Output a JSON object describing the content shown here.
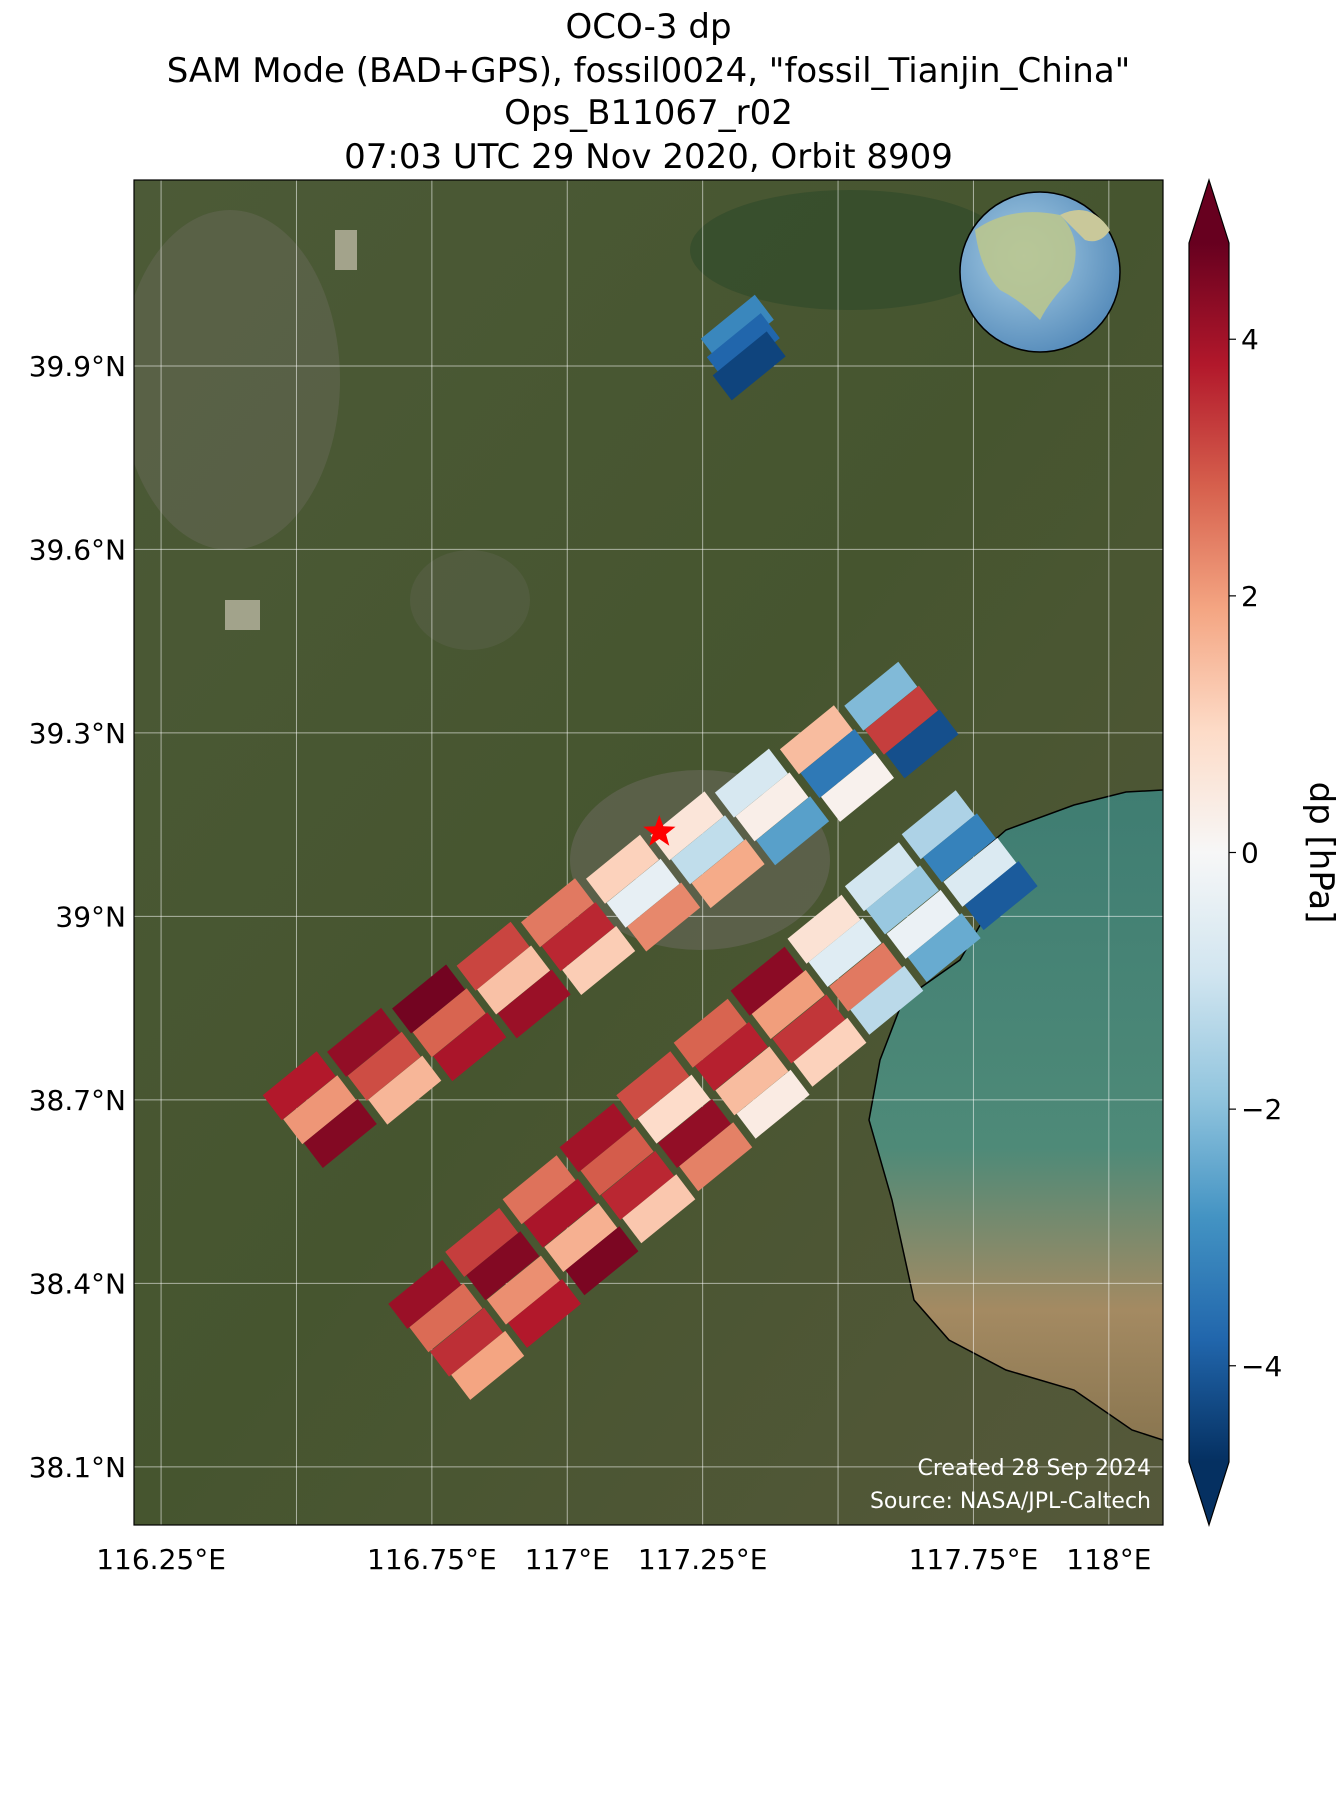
{
  "chart_data": {
    "type": "map",
    "title_lines": [
      "OCO-3 dp",
      "SAM Mode (BAD+GPS), fossil0024, \"fossil_Tianjin_China\"",
      "Ops_B11067_r02",
      "07:03 UTC 29 Nov 2020, Orbit 8909"
    ],
    "colorbar_label": "dp [hPa]",
    "footer": [
      "Created 28 Sep 2024",
      "Source: NASA/JPL-Caltech"
    ],
    "xlim": [
      116.2,
      118.1
    ],
    "ylim": [
      38.005,
      40.204
    ],
    "xticks": [
      {
        "value": 116.25,
        "label": "116.25°E"
      },
      {
        "value": 116.5,
        "label": null
      },
      {
        "value": 116.75,
        "label": "116.75°E"
      },
      {
        "value": 117,
        "label": "117°E"
      },
      {
        "value": 117.25,
        "label": "117.25°E"
      },
      {
        "value": 117.5,
        "label": null
      },
      {
        "value": 117.75,
        "label": "117.75°E"
      },
      {
        "value": 118,
        "label": "118°E"
      }
    ],
    "yticks": [
      {
        "value": 39.9,
        "label": "39.9°N"
      },
      {
        "value": 39.6,
        "label": "39.6°N"
      },
      {
        "value": 39.3,
        "label": "39.3°N"
      },
      {
        "value": 39,
        "label": "39°N"
      },
      {
        "value": 38.7,
        "label": "38.7°N"
      },
      {
        "value": 38.4,
        "label": "38.4°N"
      },
      {
        "value": 38.1,
        "label": "38.1°N"
      }
    ],
    "grid": true,
    "clim": [
      -4.75,
      4.75
    ],
    "cticks": [
      {
        "value": -4,
        "label": "−4"
      },
      {
        "value": -2,
        "label": "−2"
      },
      0,
      2,
      4
    ],
    "colormap": [
      "#053061",
      "#2166ac",
      "#4393c3",
      "#92c5de",
      "#d1e5f0",
      "#f7f7f7",
      "#fddbc7",
      "#f4a582",
      "#d6604d",
      "#b2182b",
      "#67001f"
    ],
    "target": {
      "lon": 117.17,
      "lat": 39.138,
      "color": "#ff0000"
    },
    "soundings": {
      "lon": [
        116.505,
        116.543,
        116.581,
        116.624,
        116.662,
        116.7,
        116.744,
        116.782,
        116.82,
        116.863,
        116.901,
        116.939,
        116.982,
        117.02,
        117.058,
        117.102,
        117.14,
        117.178,
        117.221,
        117.259,
        117.297,
        117.34,
        117.378,
        117.416,
        117.46,
        117.498,
        117.536,
        117.579,
        117.617,
        117.655,
        116.737,
        116.776,
        116.814,
        116.853,
        116.842,
        116.881,
        116.919,
        116.958,
        116.948,
        116.987,
        117.025,
        117.064,
        117.053,
        117.092,
        117.13,
        117.169,
        117.158,
        117.197,
        117.235,
        117.274,
        117.264,
        117.303,
        117.341,
        117.38,
        117.369,
        117.408,
        117.446,
        117.485,
        117.474,
        117.513,
        117.551,
        117.59,
        117.58,
        117.619,
        117.657,
        117.696,
        117.685,
        117.724,
        117.762,
        117.801,
        117.314,
        117.325,
        117.336
      ],
      "lat": [
        38.723,
        38.684,
        38.645,
        38.794,
        38.755,
        38.716,
        38.865,
        38.826,
        38.787,
        38.935,
        38.896,
        38.857,
        39.006,
        38.967,
        38.928,
        39.077,
        39.038,
        38.999,
        39.148,
        39.109,
        39.07,
        39.218,
        39.179,
        39.14,
        39.289,
        39.25,
        39.211,
        39.36,
        39.321,
        39.282,
        38.382,
        38.344,
        38.304,
        38.266,
        38.467,
        38.429,
        38.389,
        38.351,
        38.553,
        38.515,
        38.475,
        38.437,
        38.638,
        38.6,
        38.56,
        38.522,
        38.723,
        38.685,
        38.645,
        38.607,
        38.809,
        38.771,
        38.731,
        38.693,
        38.894,
        38.856,
        38.816,
        38.778,
        38.979,
        38.941,
        38.901,
        38.863,
        39.065,
        39.027,
        38.987,
        38.949,
        39.15,
        39.112,
        39.072,
        39.034,
        39.96,
        39.93,
        39.9
      ],
      "dp": [
        3.8,
        2.1,
        4.4,
        4.2,
        3.1,
        1.6,
        4.6,
        2.8,
        3.9,
        3.2,
        1.4,
        4.1,
        2.5,
        3.6,
        1.2,
        1.1,
        -0.4,
        2.3,
        0.6,
        -1.2,
        1.8,
        -0.8,
        0.3,
        -2.6,
        1.5,
        -3.4,
        0.2,
        -2.1,
        3.3,
        -4.2,
        4.1,
        2.7,
        3.5,
        1.9,
        3.3,
        4.4,
        2.2,
        3.8,
        2.6,
        3.9,
        1.7,
        4.5,
        4.0,
        2.9,
        3.6,
        1.3,
        3.1,
        0.9,
        4.2,
        2.4,
        2.8,
        3.7,
        1.5,
        0.4,
        4.3,
        2.0,
        3.4,
        1.1,
        0.7,
        -0.6,
        2.5,
        -1.3,
        -0.9,
        -1.8,
        -0.3,
        -2.4,
        -1.5,
        -3.2,
        -0.7,
        -4.0,
        -3.1,
        -3.8,
        -4.4
      ]
    }
  }
}
